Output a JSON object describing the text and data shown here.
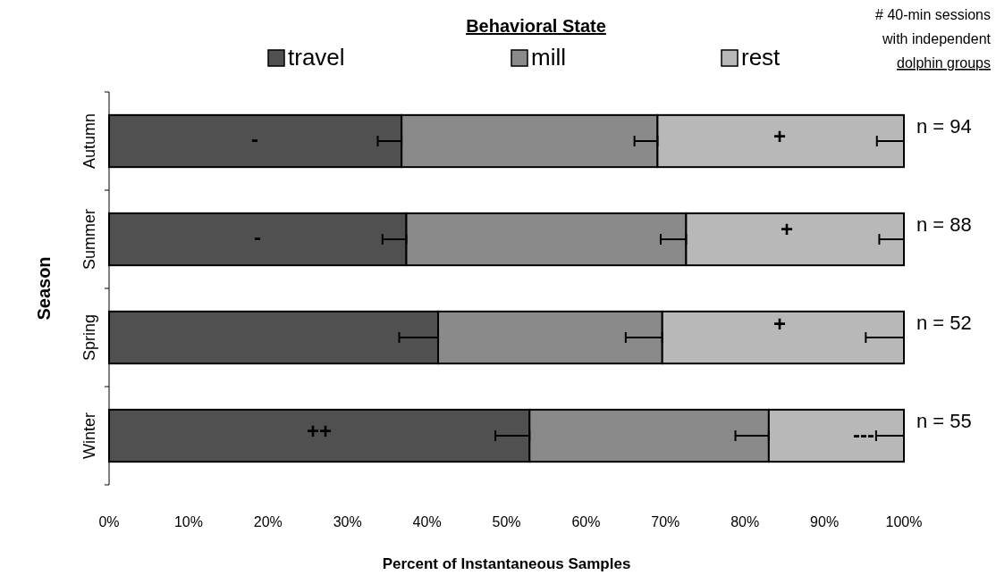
{
  "chart_data": {
    "type": "bar",
    "orientation": "horizontal",
    "stacked": true,
    "xlabel": "Percent of Instantaneous Samples",
    "ylabel": "Season",
    "legend_title": "Behavioral State",
    "legend": "top",
    "categories": [
      "Autumn",
      "Summer",
      "Spring",
      "Winter"
    ],
    "series": [
      {
        "name": "travel",
        "color": "#505050",
        "values": [
          36.8,
          37.4,
          41.4,
          52.9
        ],
        "errors": [
          [
            33.8,
            36.8
          ],
          [
            34.4,
            37.4
          ],
          [
            36.5,
            41.4
          ],
          [
            48.6,
            52.9
          ]
        ]
      },
      {
        "name": "mill",
        "color": "#8a8a8a",
        "values": [
          32.2,
          35.2,
          28.2,
          30.1
        ],
        "errors": [
          [
            66.1,
            69.0
          ],
          [
            69.4,
            72.6
          ],
          [
            65.0,
            69.6
          ],
          [
            78.8,
            83.0
          ]
        ]
      },
      {
        "name": "rest",
        "color": "#b8b8b8",
        "values": [
          31.0,
          27.4,
          30.4,
          17.0
        ],
        "errors": [
          [
            96.6,
            100
          ],
          [
            96.9,
            100
          ],
          [
            95.2,
            100
          ],
          [
            96.5,
            100
          ]
        ]
      }
    ],
    "xlim": [
      0,
      100
    ],
    "xticks": [
      {
        "value": 0,
        "label": "0%"
      },
      {
        "value": 10,
        "label": "10%"
      },
      {
        "value": 20,
        "label": "20%"
      },
      {
        "value": 30,
        "label": "30%"
      },
      {
        "value": 40,
        "label": "40%"
      },
      {
        "value": 50,
        "label": "50%"
      },
      {
        "value": 60,
        "label": "60%"
      },
      {
        "value": 70,
        "label": "70%"
      },
      {
        "value": 80,
        "label": "80%"
      },
      {
        "value": 90,
        "label": "90%"
      },
      {
        "value": 100,
        "label": "100%"
      }
    ],
    "grid": false,
    "annotations": [
      "-",
      "-",
      "++",
      "+",
      "+",
      "+",
      "---",
      "n = 94",
      "n = 88",
      "n = 52",
      "n = 55",
      "# 40-min sessions\nwith independent\ndolphin groups"
    ]
  }
}
